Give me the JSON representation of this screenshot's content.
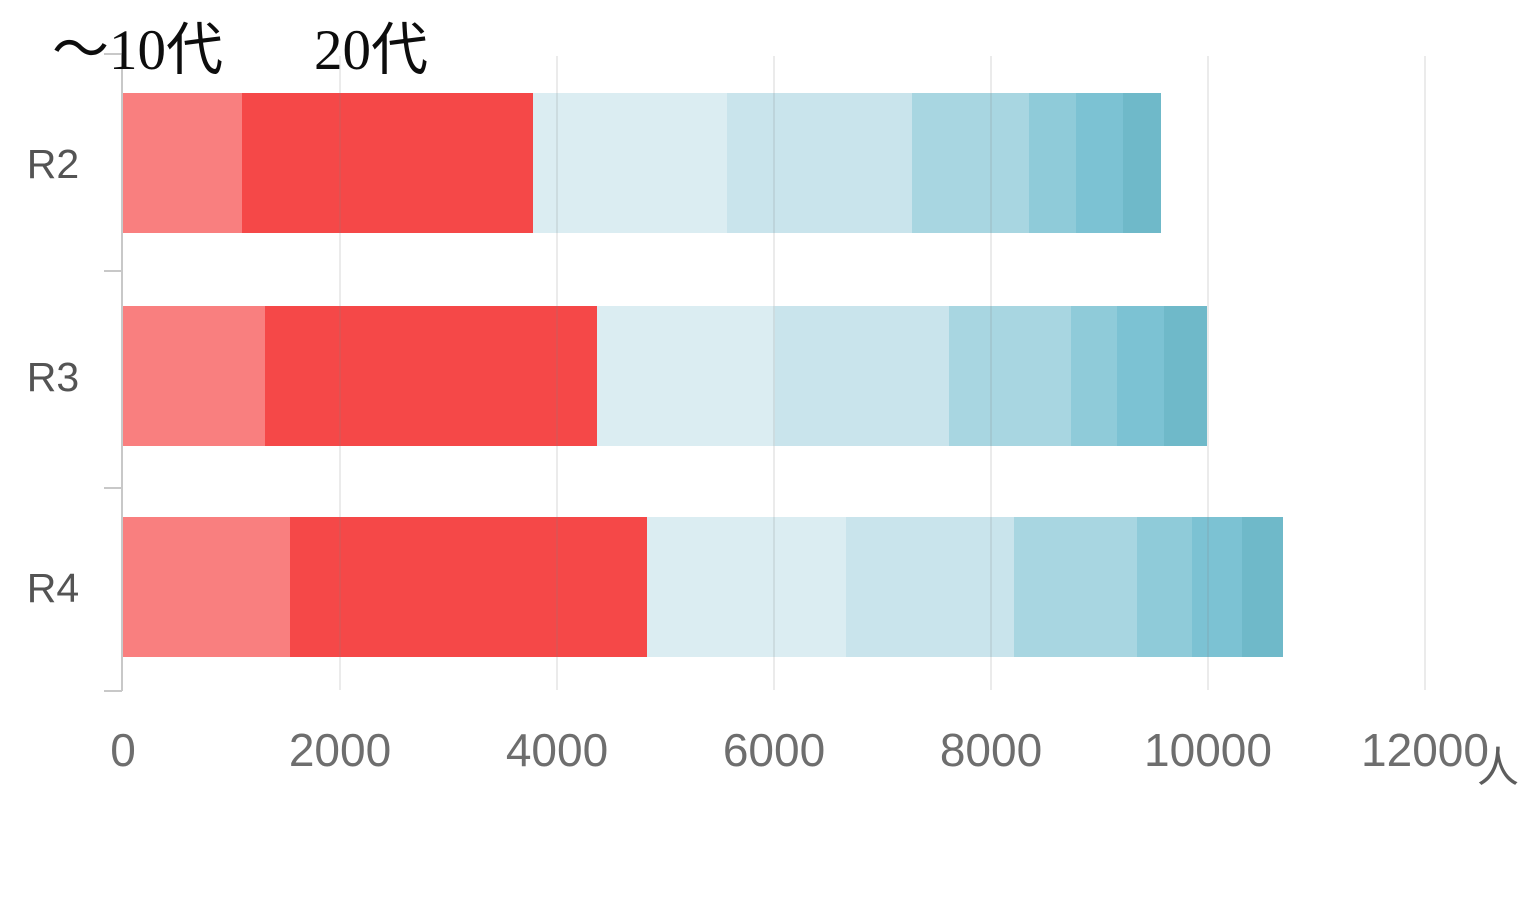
{
  "page": {
    "background": "#ffffff"
  },
  "chart_data": {
    "type": "bar",
    "orientation": "horizontal",
    "stacked": true,
    "title": "",
    "categories": [
      "R2",
      "R3",
      "R4"
    ],
    "series": [
      {
        "label": "〜10代",
        "color": "#f97f7f",
        "values": [
          1100,
          1310,
          1540
        ]
      },
      {
        "label": "20代",
        "color": "#f54848",
        "values": [
          2680,
          3060,
          3290
        ]
      },
      {
        "label": "",
        "color": "#dbedf2",
        "values": [
          1790,
          1640,
          1830
        ]
      },
      {
        "label": "",
        "color": "#c9e4ec",
        "values": [
          1700,
          1600,
          1550
        ]
      },
      {
        "label": "",
        "color": "#a8d6e1",
        "values": [
          1080,
          1130,
          1140
        ]
      },
      {
        "label": "",
        "color": "#8fcbd9",
        "values": [
          430,
          420,
          500
        ]
      },
      {
        "label": "",
        "color": "#7cc2d3",
        "values": [
          440,
          430,
          460
        ]
      },
      {
        "label": "",
        "color": "#6fb9c9",
        "values": [
          350,
          400,
          380
        ]
      }
    ],
    "totals": [
      9570,
      9990,
      10690
    ],
    "x_ticks": [
      0,
      2000,
      4000,
      6000,
      8000,
      10000,
      12000
    ],
    "x_unit": "人",
    "xlim": [
      0,
      12400
    ],
    "grid": true,
    "legend_position": "top-left-annotations"
  }
}
